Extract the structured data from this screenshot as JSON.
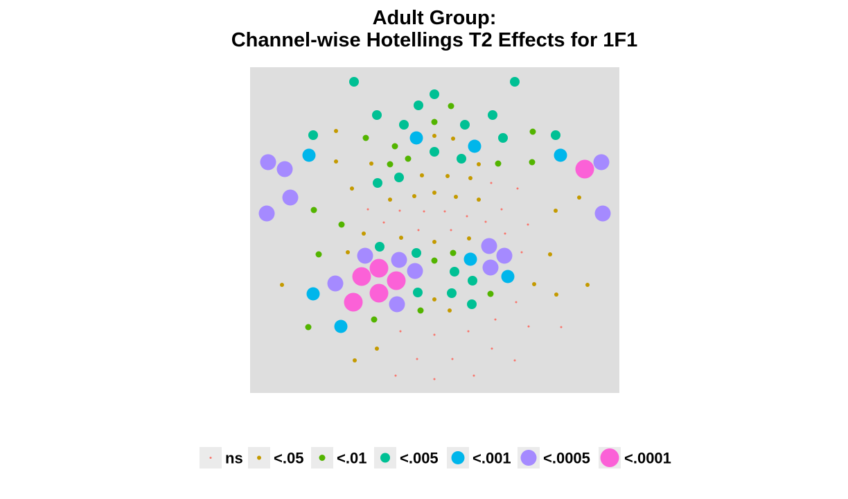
{
  "chart_data": {
    "type": "scatter",
    "title": [
      "Adult Group:",
      "Channel-wise Hotellings T2 Effects for 1F1"
    ],
    "xlabel": "",
    "ylabel": "",
    "grid": false,
    "axes_shown": false,
    "legend": {
      "placement": "bottom",
      "entries": [
        {
          "label": "ns",
          "color": "#F8766D",
          "size": 3
        },
        {
          "label": "<.05",
          "color": "#C49A00",
          "size": 6
        },
        {
          "label": "<.01",
          "color": "#53B400",
          "size": 9
        },
        {
          "label": "<.005",
          "color": "#00C094",
          "size": 14
        },
        {
          "label": "<.001",
          "color": "#00B6EB",
          "size": 19
        },
        {
          "label": "<.0005",
          "color": "#A58AFF",
          "size": 23
        },
        {
          "label": "<.0001",
          "color": "#FB61D7",
          "size": 27
        }
      ]
    },
    "xlim": [
      361,
      894
    ],
    "ylim": [
      567,
      97
    ],
    "series": [
      {
        "name": "ns",
        "points": [
          [
            709,
            264
          ],
          [
            747,
            272
          ],
          [
            531,
            302
          ],
          [
            577,
            304
          ],
          [
            612,
            305
          ],
          [
            642,
            305
          ],
          [
            674,
            312
          ],
          [
            701,
            320
          ],
          [
            724,
            302
          ],
          [
            554,
            321
          ],
          [
            604,
            332
          ],
          [
            651,
            332
          ],
          [
            729,
            337
          ],
          [
            762,
            324
          ],
          [
            753,
            364
          ],
          [
            745,
            436
          ],
          [
            715,
            461
          ],
          [
            763,
            471
          ],
          [
            810,
            472
          ],
          [
            578,
            478
          ],
          [
            627,
            483
          ],
          [
            676,
            478
          ],
          [
            710,
            503
          ],
          [
            743,
            520
          ],
          [
            602,
            518
          ],
          [
            653,
            518
          ],
          [
            571,
            542
          ],
          [
            627,
            547
          ],
          [
            684,
            542
          ]
        ]
      },
      {
        "name": "<.05",
        "points": [
          [
            485,
            189
          ],
          [
            627,
            196
          ],
          [
            654,
            200
          ],
          [
            485,
            233
          ],
          [
            536,
            236
          ],
          [
            691,
            237
          ],
          [
            609,
            253
          ],
          [
            646,
            254
          ],
          [
            679,
            257
          ],
          [
            508,
            272
          ],
          [
            563,
            288
          ],
          [
            598,
            283
          ],
          [
            627,
            278
          ],
          [
            658,
            284
          ],
          [
            691,
            288
          ],
          [
            836,
            285
          ],
          [
            802,
            304
          ],
          [
            525,
            337
          ],
          [
            579,
            343
          ],
          [
            627,
            349
          ],
          [
            677,
            344
          ],
          [
            502,
            364
          ],
          [
            794,
            367
          ],
          [
            407,
            411
          ],
          [
            771,
            410
          ],
          [
            848,
            411
          ],
          [
            803,
            425
          ],
          [
            627,
            432
          ],
          [
            649,
            448
          ],
          [
            544,
            503
          ],
          [
            512,
            520
          ]
        ]
      },
      {
        "name": "<.01",
        "points": [
          [
            651,
            153
          ],
          [
            769,
            190
          ],
          [
            528,
            199
          ],
          [
            570,
            211
          ],
          [
            627,
            176
          ],
          [
            589,
            229
          ],
          [
            563,
            237
          ],
          [
            719,
            236
          ],
          [
            768,
            234
          ],
          [
            453,
            303
          ],
          [
            493,
            324
          ],
          [
            460,
            367
          ],
          [
            654,
            365
          ],
          [
            627,
            376
          ],
          [
            708,
            424
          ],
          [
            607,
            448
          ],
          [
            540,
            461
          ],
          [
            445,
            472
          ]
        ]
      },
      {
        "name": "<.005",
        "points": [
          [
            511,
            118
          ],
          [
            743,
            118
          ],
          [
            627,
            136
          ],
          [
            604,
            152
          ],
          [
            544,
            166
          ],
          [
            711,
            166
          ],
          [
            583,
            180
          ],
          [
            671,
            180
          ],
          [
            452,
            195
          ],
          [
            802,
            195
          ],
          [
            726,
            199
          ],
          [
            627,
            219
          ],
          [
            666,
            229
          ],
          [
            576,
            256
          ],
          [
            545,
            264
          ],
          [
            548,
            356
          ],
          [
            601,
            365
          ],
          [
            656,
            392
          ],
          [
            682,
            405
          ],
          [
            603,
            422
          ],
          [
            652,
            423
          ],
          [
            681,
            439
          ]
        ]
      },
      {
        "name": "<.001",
        "points": [
          [
            601,
            199
          ],
          [
            685,
            211
          ],
          [
            446,
            224
          ],
          [
            809,
            224
          ],
          [
            679,
            374
          ],
          [
            733,
            399
          ],
          [
            452,
            424
          ],
          [
            492,
            471
          ]
        ]
      },
      {
        "name": "<.0005",
        "points": [
          [
            387,
            234
          ],
          [
            411,
            244
          ],
          [
            868,
            234
          ],
          [
            419,
            285
          ],
          [
            385,
            308
          ],
          [
            870,
            308
          ],
          [
            706,
            355
          ],
          [
            527,
            369
          ],
          [
            576,
            375
          ],
          [
            728,
            369
          ],
          [
            599,
            391
          ],
          [
            708,
            386
          ],
          [
            484,
            409
          ],
          [
            573,
            439
          ]
        ]
      },
      {
        "name": "<.0001",
        "points": [
          [
            844,
            244
          ],
          [
            547,
            387
          ],
          [
            522,
            399
          ],
          [
            572,
            405
          ],
          [
            547,
            423
          ],
          [
            510,
            436
          ]
        ]
      }
    ]
  }
}
